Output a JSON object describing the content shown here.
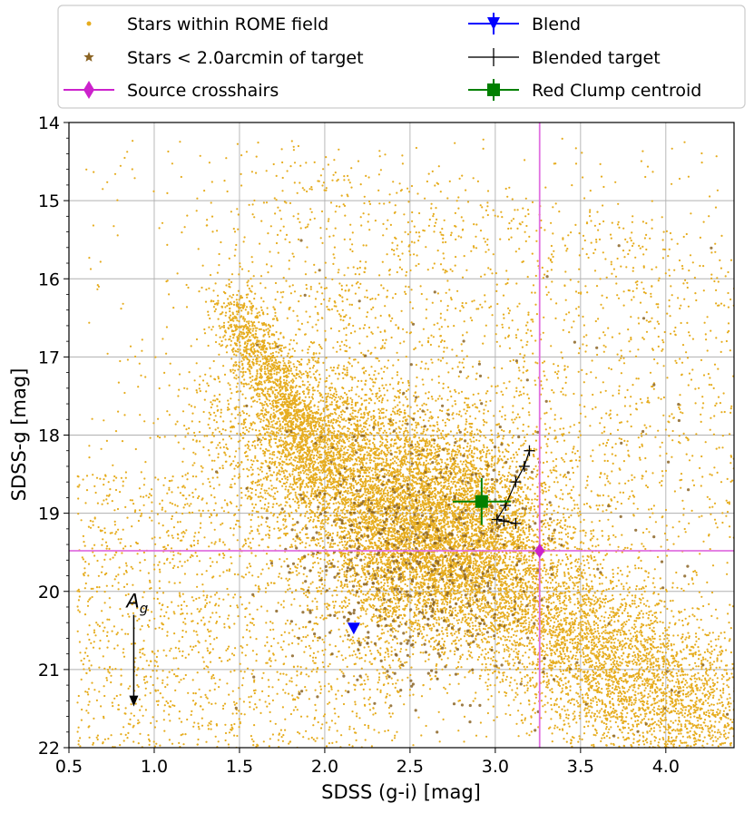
{
  "chart_data": {
    "type": "scatter",
    "xlabel": "SDSS (g-i) [mag]",
    "ylabel": "SDSS-g [mag]",
    "xlim": [
      0.5,
      4.4
    ],
    "ylim": [
      22,
      14
    ],
    "y_inverted": true,
    "grid": true,
    "legend_placement": "top, above plot",
    "xticks": [
      "0.5",
      "1.0",
      "1.5",
      "2.0",
      "2.5",
      "3.0",
      "3.5",
      "4.0"
    ],
    "yticks": [
      "14",
      "15",
      "16",
      "17",
      "18",
      "19",
      "20",
      "21",
      "22"
    ],
    "legend": [
      {
        "label": "Stars within ROME field",
        "marker": "dot",
        "color": "#e6ac1e"
      },
      {
        "label": "Stars < 2.0arcmin of target",
        "marker": "star",
        "color": "#8b6424"
      },
      {
        "label": "Source crosshairs",
        "marker": "diamond",
        "color": "#cc22cc"
      },
      {
        "label": "Blend",
        "marker": "triangle-down",
        "color": "#0000ff"
      },
      {
        "label": "Blended target",
        "marker": "plus",
        "color": "#000000"
      },
      {
        "label": "Red Clump centroid",
        "marker": "square",
        "color": "#008000"
      }
    ],
    "series": [
      {
        "name": "Stars within ROME field",
        "color": "#e6ac1e",
        "distribution": "dense band from (1.5, 16.5) to (4.3, 22) with broad cloud centered near (2.6, 19.2)"
      },
      {
        "name": "Stars < 2.0arcmin of target",
        "color": "#8b6424",
        "distribution": "sparse points concentrated near (2.6, 19.5)"
      }
    ],
    "source_crosshairs": {
      "x": 3.26,
      "y": 19.48
    },
    "blend": {
      "x": 2.17,
      "y": 20.47
    },
    "red_clump_centroid": {
      "x": 2.92,
      "y": 18.85,
      "xerr": 0.17,
      "yerr": 0.3
    },
    "blended_target": {
      "x": [
        3.2,
        3.17,
        3.12,
        3.06,
        3.01,
        3.05,
        3.12
      ],
      "y": [
        18.2,
        18.4,
        18.6,
        18.9,
        19.08,
        19.1,
        19.13
      ]
    },
    "annotation": {
      "label": "A",
      "subscript": "g",
      "arrow_x": 0.88,
      "arrow_from_y": 20.3,
      "arrow_to_y": 21.45
    }
  }
}
